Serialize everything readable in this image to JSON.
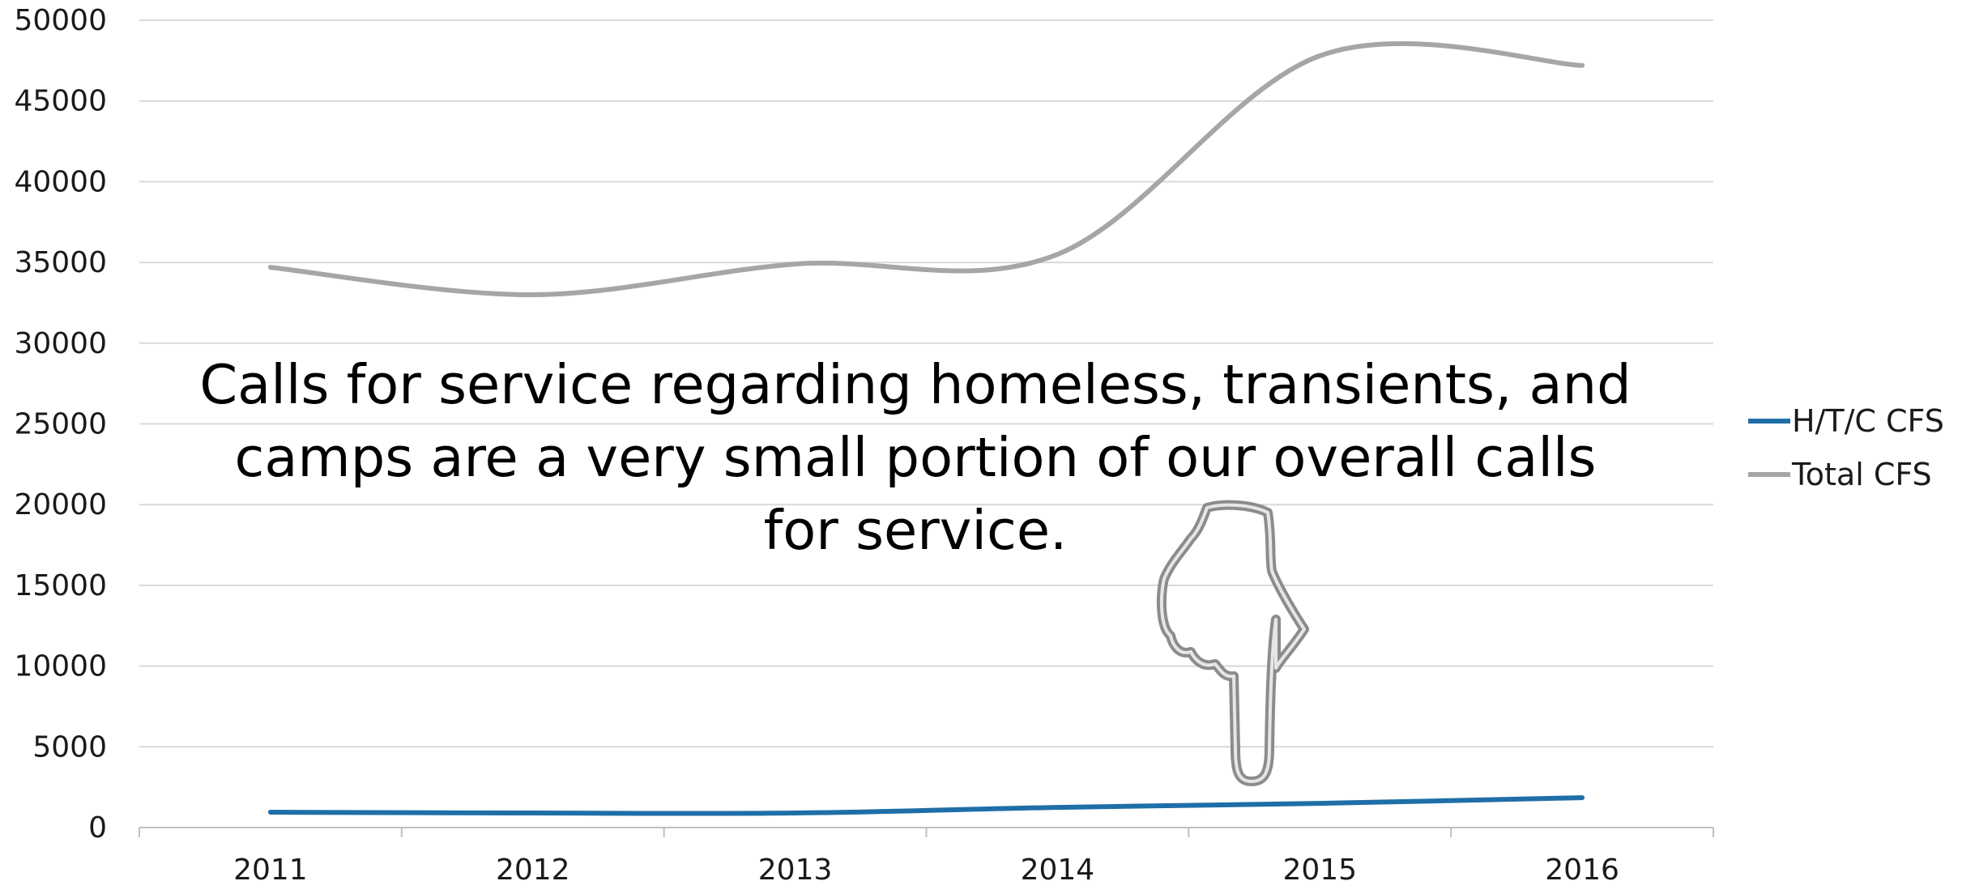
{
  "chart_data": {
    "type": "line",
    "categories": [
      "2011",
      "2012",
      "2013",
      "2014",
      "2015",
      "2016"
    ],
    "series": [
      {
        "name": "H/T/C CFS",
        "color": "#1f6ea8",
        "values": [
          950,
          900,
          900,
          1250,
          1500,
          1850
        ]
      },
      {
        "name": "Total CFS",
        "color": "#a6a6a6",
        "values": [
          34700,
          33000,
          34900,
          35500,
          47800,
          47200
        ]
      }
    ],
    "ylim": [
      0,
      50000
    ],
    "yticks": [
      0,
      5000,
      10000,
      15000,
      20000,
      25000,
      30000,
      35000,
      40000,
      45000,
      50000
    ],
    "grid": true,
    "legend": "right",
    "annotation": "Calls for service regarding homeless, transients, and camps are a very small portion of our overall calls for service.",
    "icon": "pointing-hand-icon"
  }
}
